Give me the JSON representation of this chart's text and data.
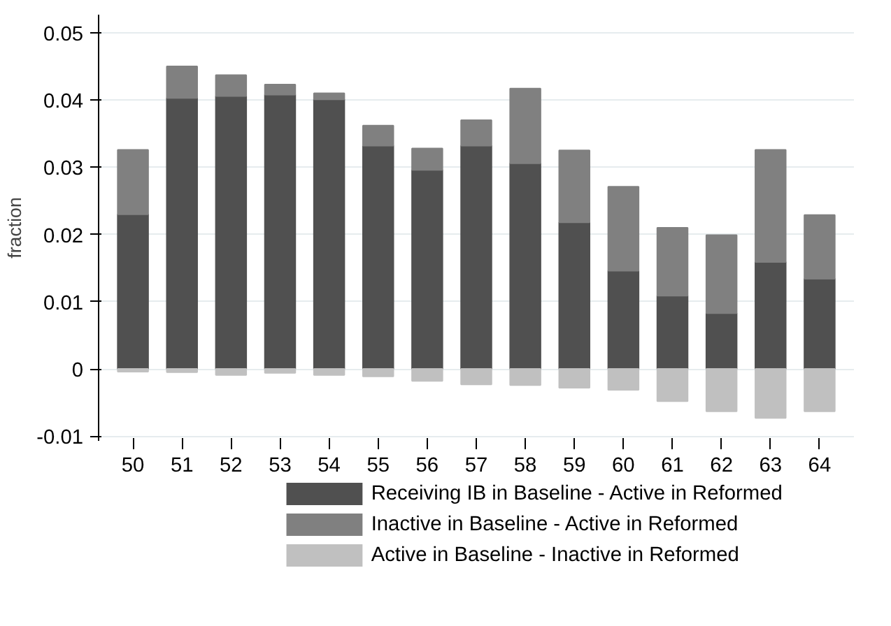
{
  "chart_data": {
    "type": "bar",
    "stacked": true,
    "ylabel": "fraction",
    "categories": [
      "50",
      "51",
      "52",
      "53",
      "54",
      "55",
      "56",
      "57",
      "58",
      "59",
      "60",
      "61",
      "62",
      "63",
      "64"
    ],
    "series": [
      {
        "name": "Receiving IB in Baseline - Active in Reformed",
        "color": "#505050",
        "values": [
          0.023,
          0.0403,
          0.0406,
          0.0408,
          0.0401,
          0.0332,
          0.0296,
          0.0332,
          0.0306,
          0.0218,
          0.0146,
          0.0109,
          0.0083,
          0.0159,
          0.0134
        ]
      },
      {
        "name": "Inactive in Baseline - Active in Reformed",
        "color": "#808080",
        "values": [
          0.0096,
          0.0047,
          0.0031,
          0.0015,
          0.0009,
          0.003,
          0.0032,
          0.0038,
          0.0111,
          0.0107,
          0.0125,
          0.0101,
          0.0116,
          0.0167,
          0.0095
        ]
      },
      {
        "name": "Active in Baseline - Inactive in Reformed",
        "color": "#c0c0c0",
        "values": [
          -0.0004,
          -0.0005,
          -0.0009,
          -0.0006,
          -0.0009,
          -0.0011,
          -0.0018,
          -0.0023,
          -0.0024,
          -0.0028,
          -0.0031,
          -0.0048,
          -0.0063,
          -0.0073,
          -0.0063
        ]
      }
    ],
    "ylim": [
      -0.0107,
      0.0527
    ],
    "yticks": [
      {
        "value": -0.01,
        "label": "-0.01"
      },
      0,
      {
        "value": 0.01,
        "label": "0.01"
      },
      {
        "value": 0.02,
        "label": "0.02"
      },
      {
        "value": 0.03,
        "label": "0.03"
      },
      {
        "value": 0.04,
        "label": "0.04"
      },
      {
        "value": 0.05,
        "label": "0.05"
      }
    ],
    "grid": "y",
    "legend": "bottom"
  }
}
